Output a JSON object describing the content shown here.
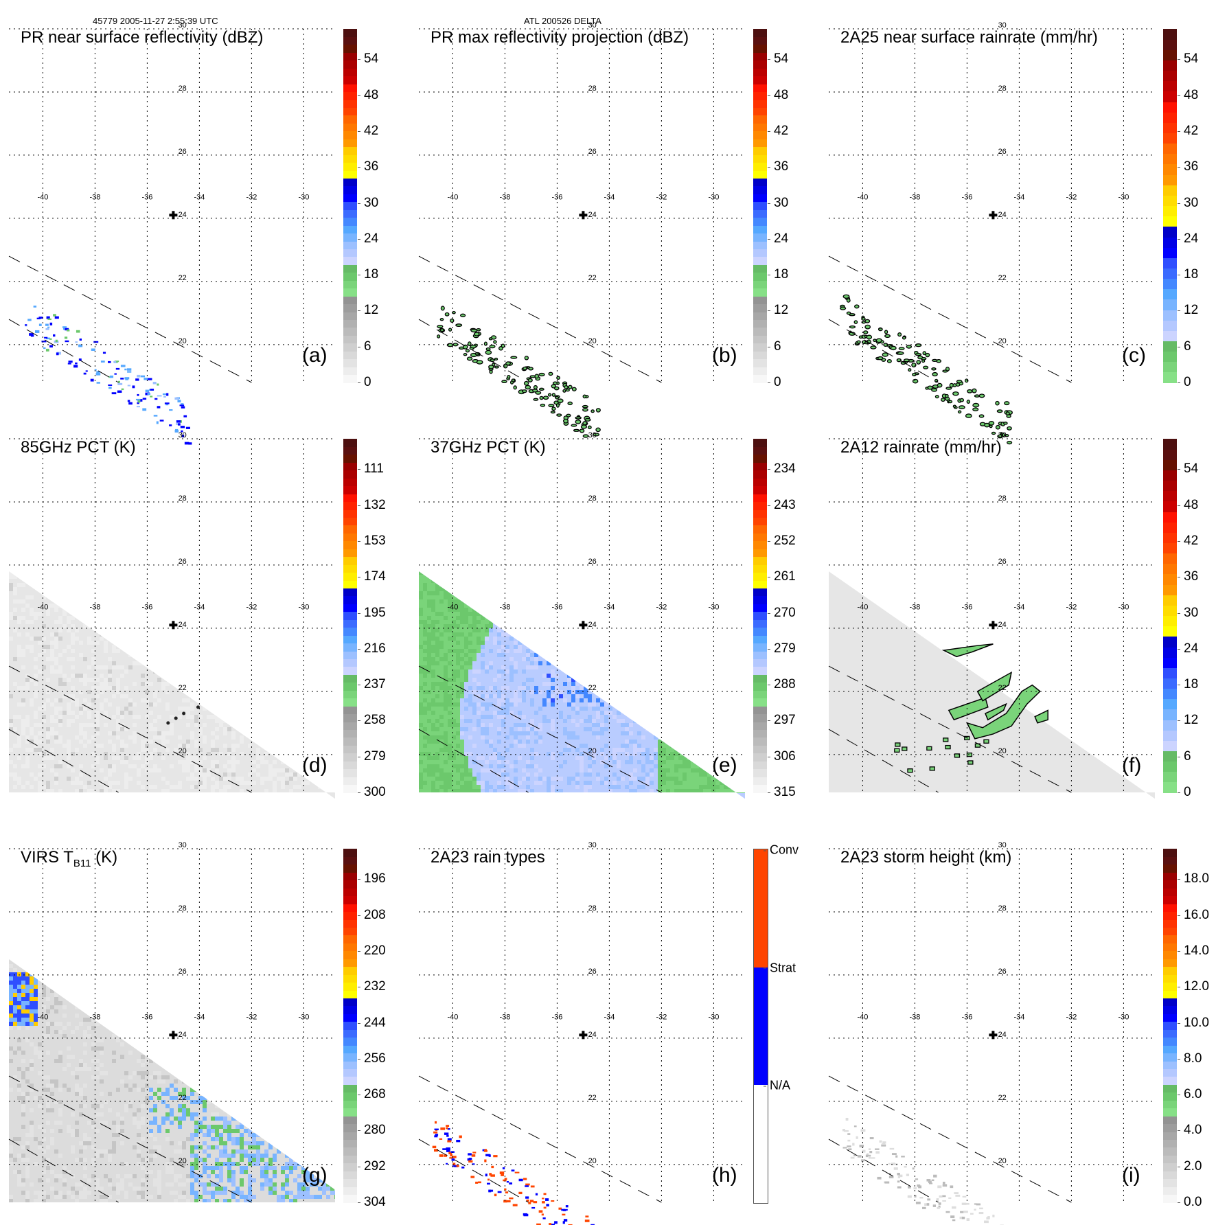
{
  "header": {
    "left": "45779 2005-11-27 2:55:39 UTC",
    "center": "ATL 200526 DELTA"
  },
  "map": {
    "lon_labels": [
      "-40",
      "-38",
      "-36",
      "-34",
      "-32",
      "-30"
    ],
    "lat_labels": [
      "30",
      "28",
      "26",
      "24",
      "22",
      "20"
    ],
    "lon_range": [
      -41.3,
      -28.8
    ],
    "lat_range": [
      18.8,
      30.0
    ],
    "storm_center": {
      "lon": -35.0,
      "lat": 24.1,
      "marker": "plus-icon"
    }
  },
  "palettes": {
    "standard": [
      "#f7f7f7",
      "#ededed",
      "#e3e3e3",
      "#d9d9d9",
      "#cfcfcf",
      "#c5c5c5",
      "#bbbbbb",
      "#b1b1b1",
      "#a7a7a7",
      "#9d9d9d",
      "#939393",
      "#87e087",
      "#7ad47a",
      "#6cc86c",
      "#66bb66",
      "#ccd4ff",
      "#b4c8ff",
      "#9cc0ff",
      "#78b4ff",
      "#55a8ff",
      "#4488ff",
      "#3b6bff",
      "#2f4fff",
      "#0000ff",
      "#0000e6",
      "#0000c8",
      "#ffff00",
      "#ffee00",
      "#ffdd00",
      "#ffcc00",
      "#ff9900",
      "#ff8800",
      "#ff7700",
      "#ff6600",
      "#ff4400",
      "#ff3300",
      "#ff2200",
      "#ff1100",
      "#cc0000",
      "#bb0000",
      "#aa0000",
      "#990000",
      "#661100",
      "#5a1010",
      "#4d1010"
    ],
    "raintypes": [
      "#ffffff",
      "#0000ff",
      "#ff4500"
    ]
  },
  "panels": [
    {
      "id": "a",
      "label": "(a)",
      "title": "PR near surface reflectivity (dBZ)",
      "colorbar": {
        "type": "continuous",
        "ticks": [
          "54",
          "48",
          "42",
          "36",
          "30",
          "24",
          "18",
          "12",
          "6",
          "0"
        ],
        "range": [
          0,
          60
        ]
      },
      "swath": "pr",
      "field": "pr_reflectivity"
    },
    {
      "id": "b",
      "label": "(b)",
      "title": "PR max reflectivity projection (dBZ)",
      "colorbar": {
        "type": "continuous",
        "ticks": [
          "54",
          "48",
          "42",
          "36",
          "30",
          "24",
          "18",
          "12",
          "6",
          "0"
        ],
        "range": [
          0,
          60
        ]
      },
      "swath": "pr",
      "field": "pr_maxrefl_contours"
    },
    {
      "id": "c",
      "label": "(c)",
      "title": "2A25 near surface rainrate (mm/hr)",
      "colorbar": {
        "type": "continuous",
        "ticks": [
          "54",
          "48",
          "42",
          "36",
          "30",
          "24",
          "18",
          "12",
          "6",
          "0"
        ],
        "range": [
          0,
          60
        ],
        "offset": "rain"
      },
      "swath": "pr",
      "field": "pr_rainrate_contours"
    },
    {
      "id": "d",
      "label": "(d)",
      "title": "85GHz PCT (K)",
      "colorbar": {
        "type": "continuous",
        "ticks": [
          "111",
          "132",
          "153",
          "174",
          "195",
          "216",
          "237",
          "258",
          "279",
          "300"
        ],
        "range": [
          300,
          90
        ]
      },
      "swath": "tmi",
      "field": "pct85"
    },
    {
      "id": "e",
      "label": "(e)",
      "title": "37GHz PCT (K)",
      "colorbar": {
        "type": "continuous",
        "ticks": [
          "234",
          "243",
          "252",
          "261",
          "270",
          "279",
          "288",
          "297",
          "306",
          "315"
        ],
        "range": [
          315,
          225
        ]
      },
      "swath": "tmi",
      "field": "pct37"
    },
    {
      "id": "f",
      "label": "(f)",
      "title": "2A12 rainrate (mm/hr)",
      "colorbar": {
        "type": "continuous",
        "ticks": [
          "54",
          "48",
          "42",
          "36",
          "30",
          "24",
          "18",
          "12",
          "6",
          "0"
        ],
        "range": [
          0,
          60
        ],
        "offset": "rain"
      },
      "swath": "tmi",
      "field": "tmi_rain"
    },
    {
      "id": "g",
      "label": "(g)",
      "title_main": "VIRS T",
      "title_sub": "B11",
      "title_tail": " (K)",
      "colorbar": {
        "type": "continuous",
        "ticks": [
          "196",
          "208",
          "220",
          "232",
          "244",
          "256",
          "268",
          "280",
          "292",
          "304"
        ],
        "range": [
          304,
          184
        ]
      },
      "swath": "virs",
      "field": "virs_tb11"
    },
    {
      "id": "h",
      "label": "(h)",
      "title": "2A23 rain types",
      "colorbar": {
        "type": "categorical",
        "ticks": [
          "Conv",
          "Strat",
          "N/A"
        ]
      },
      "swath": "pr",
      "field": "raintypes"
    },
    {
      "id": "i",
      "label": "(i)",
      "title": "2A23 storm height (km)",
      "colorbar": {
        "type": "continuous",
        "ticks": [
          "18.0",
          "16.0",
          "14.0",
          "12.0",
          "10.0",
          "8.0",
          "6.0",
          "4.0",
          "2.0",
          "0.0"
        ],
        "range": [
          0,
          20
        ]
      },
      "swath": "pr",
      "field": "stormheight"
    }
  ]
}
